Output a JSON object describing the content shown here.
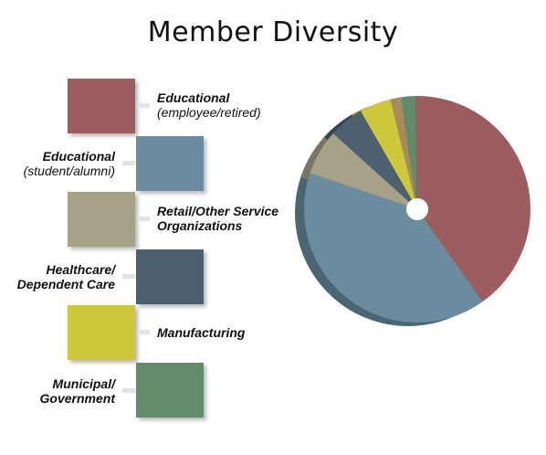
{
  "title": "Member Diversity",
  "chart_data": {
    "type": "pie",
    "title": "Member Diversity",
    "series": [
      {
        "name": "",
        "values": [
          40.5,
          40.0,
          6.5,
          5.0,
          4.5,
          2.0,
          1.5
        ]
      }
    ],
    "categories": [
      "Educational (employee/retired)",
      "Educational (student/alumni)",
      "Retail/Other Service Organizations",
      "Healthcare/ Dependent Care",
      "Manufacturing",
      "Municipal/ Government",
      "Other (unlabeled sliver)"
    ],
    "legend_placement": "left",
    "style": "3d-donut"
  },
  "legend": [
    {
      "line1": "Educational",
      "line2": "(employee/retired)",
      "line2_bold": false,
      "color": "#9b5d5d"
    },
    {
      "line1": "Educational",
      "line2": "(student/alumni)",
      "line2_bold": false,
      "color": "#6a8c9e"
    },
    {
      "line1": "Retail/Other Service",
      "line2": "Organizations",
      "line2_bold": true,
      "color": "#a6a287"
    },
    {
      "line1": "Healthcare/",
      "line2": "Dependent Care",
      "line2_bold": true,
      "color": "#4d6070"
    },
    {
      "line1": "Manufacturing",
      "line2": "",
      "line2_bold": false,
      "color": "#cec83c"
    },
    {
      "line1": "Municipal/",
      "line2": "Government",
      "line2_bold": true,
      "color": "#618c6c"
    }
  ],
  "colors": {
    "educational_employee": "#9b5d5d",
    "educational_student": "#6a8c9e",
    "retail": "#a6a287",
    "healthcare": "#4d6070",
    "manufacturing": "#cec83c",
    "municipal": "#618c6c",
    "other": "#a98a5f",
    "connector": "#e2e2e2"
  }
}
